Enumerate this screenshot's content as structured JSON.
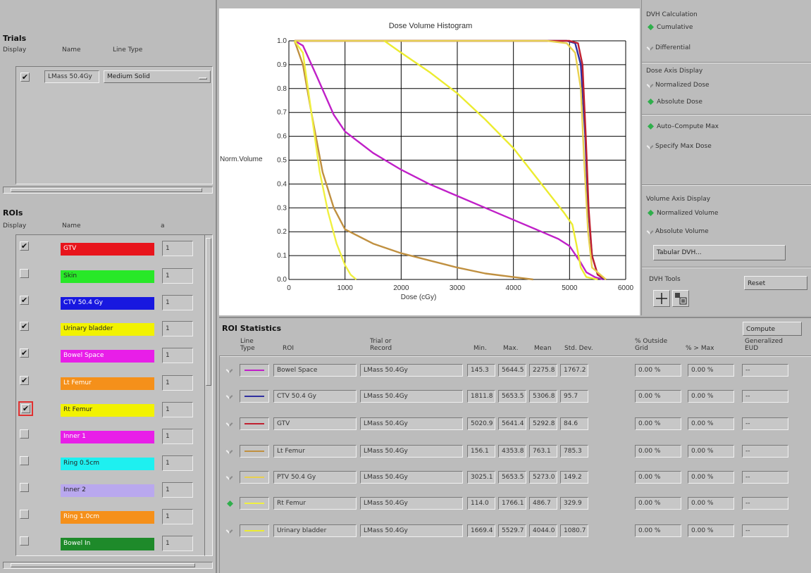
{
  "trials": {
    "title": "Trials",
    "headers": {
      "display": "Display",
      "name": "Name",
      "line_type": "Line Type"
    },
    "rows": [
      {
        "checked": true,
        "name": "LMass 50.4Gy",
        "line_type": "Medium Solid"
      }
    ]
  },
  "rois": {
    "title": "ROIs",
    "headers": {
      "display": "Display",
      "name": "Name",
      "a": "a"
    },
    "rows": [
      {
        "checked": true,
        "name": "GTV",
        "color": "#e8141c",
        "a": "1"
      },
      {
        "checked": false,
        "name": "Skin",
        "color": "#28e828",
        "a": "1"
      },
      {
        "checked": true,
        "name": "CTV 50.4 Gy",
        "color": "#1818e0",
        "a": "1"
      },
      {
        "checked": true,
        "name": "Urinary bladder",
        "color": "#f2f200",
        "a": "1"
      },
      {
        "checked": true,
        "name": "Bowel Space",
        "color": "#e81ee8",
        "a": "1"
      },
      {
        "checked": true,
        "name": "Lt Femur",
        "color": "#f5901a",
        "a": "1"
      },
      {
        "checked": true,
        "name": "Rt Femur",
        "color": "#f2f200",
        "a": "1"
      },
      {
        "checked": false,
        "name": "Inner 1",
        "color": "#e81ee8",
        "a": "1"
      },
      {
        "checked": false,
        "name": "Ring 0.5cm",
        "color": "#1ef0f0",
        "a": "1"
      },
      {
        "checked": false,
        "name": "Inner 2",
        "color": "#b9a8ee",
        "a": "1"
      },
      {
        "checked": false,
        "name": "Ring 1.0cm",
        "color": "#f5901a",
        "a": "1"
      },
      {
        "checked": false,
        "name": "Bowel In",
        "color": "#1e8a2a",
        "a": "1"
      }
    ]
  },
  "chart_data": {
    "type": "line",
    "title": "Dose Volume Histogram",
    "xlabel": "Dose (cGy)",
    "ylabel": "Norm.Volume",
    "xlim": [
      0,
      6000
    ],
    "ylim": [
      0,
      1.0
    ],
    "xticks": [
      "0",
      "1000",
      "2000",
      "3000",
      "4000",
      "5000",
      "6000"
    ],
    "yticks": [
      "0.0",
      "0.1",
      "0.2",
      "0.3",
      "0.4",
      "0.5",
      "0.6",
      "0.7",
      "0.8",
      "0.9",
      "1.0"
    ],
    "grid": true,
    "series": [
      {
        "name": "Bowel Space",
        "color": "#c020c8",
        "points": [
          [
            100,
            1.0
          ],
          [
            250,
            0.98
          ],
          [
            500,
            0.85
          ],
          [
            800,
            0.69
          ],
          [
            1000,
            0.62
          ],
          [
            1500,
            0.53
          ],
          [
            2000,
            0.46
          ],
          [
            2500,
            0.4
          ],
          [
            3000,
            0.35
          ],
          [
            3500,
            0.3
          ],
          [
            4000,
            0.25
          ],
          [
            4500,
            0.2
          ],
          [
            4800,
            0.17
          ],
          [
            5000,
            0.14
          ],
          [
            5200,
            0.07
          ],
          [
            5300,
            0.03
          ],
          [
            5450,
            0.01
          ],
          [
            5600,
            0
          ]
        ]
      },
      {
        "name": "CTV 50.4 Gy",
        "color": "#3030a0",
        "points": [
          [
            100,
            1.0
          ],
          [
            4950,
            1.0
          ],
          [
            5100,
            0.99
          ],
          [
            5200,
            0.9
          ],
          [
            5280,
            0.6
          ],
          [
            5330,
            0.3
          ],
          [
            5400,
            0.1
          ],
          [
            5500,
            0.02
          ],
          [
            5620,
            0
          ]
        ]
      },
      {
        "name": "GTV",
        "color": "#c02030",
        "points": [
          [
            100,
            1.0
          ],
          [
            5000,
            1.0
          ],
          [
            5150,
            0.99
          ],
          [
            5230,
            0.9
          ],
          [
            5290,
            0.6
          ],
          [
            5340,
            0.3
          ],
          [
            5400,
            0.1
          ],
          [
            5500,
            0.02
          ],
          [
            5650,
            0
          ]
        ]
      },
      {
        "name": "Lt Femur",
        "color": "#c09040",
        "points": [
          [
            100,
            1.0
          ],
          [
            250,
            0.9
          ],
          [
            400,
            0.7
          ],
          [
            600,
            0.45
          ],
          [
            800,
            0.3
          ],
          [
            1000,
            0.21
          ],
          [
            1500,
            0.15
          ],
          [
            2000,
            0.11
          ],
          [
            2500,
            0.08
          ],
          [
            3000,
            0.05
          ],
          [
            3500,
            0.025
          ],
          [
            4000,
            0.01
          ],
          [
            4350,
            0
          ]
        ]
      },
      {
        "name": "PTV 50.4 Gy",
        "color": "#e8d050",
        "points": [
          [
            100,
            1.0
          ],
          [
            4600,
            1.0
          ],
          [
            4950,
            0.99
          ],
          [
            5100,
            0.95
          ],
          [
            5200,
            0.8
          ],
          [
            5260,
            0.5
          ],
          [
            5330,
            0.2
          ],
          [
            5400,
            0.05
          ],
          [
            5650,
            0
          ]
        ]
      },
      {
        "name": "Rt Femur",
        "color": "#f0f040",
        "points": [
          [
            100,
            1.0
          ],
          [
            250,
            0.95
          ],
          [
            400,
            0.7
          ],
          [
            550,
            0.45
          ],
          [
            700,
            0.28
          ],
          [
            850,
            0.15
          ],
          [
            1000,
            0.06
          ],
          [
            1100,
            0.02
          ],
          [
            1200,
            0
          ]
        ]
      },
      {
        "name": "Urinary bladder",
        "color": "#ecec30",
        "points": [
          [
            1700,
            1.0
          ],
          [
            2000,
            0.95
          ],
          [
            2500,
            0.87
          ],
          [
            3000,
            0.78
          ],
          [
            3500,
            0.67
          ],
          [
            4000,
            0.55
          ],
          [
            4500,
            0.4
          ],
          [
            4900,
            0.28
          ],
          [
            5050,
            0.23
          ],
          [
            5120,
            0.15
          ],
          [
            5200,
            0.05
          ],
          [
            5300,
            0.01
          ],
          [
            5500,
            0
          ]
        ]
      }
    ]
  },
  "dvh_calc": {
    "title": "DVH Calculation",
    "options": [
      {
        "label": "Cumulative",
        "on": true
      },
      {
        "label": "Differential",
        "on": false
      }
    ]
  },
  "dose_axis": {
    "title": "Dose Axis Display",
    "options": [
      {
        "label": "Normalized Dose",
        "on": false
      },
      {
        "label": "Absolute Dose",
        "on": true
      }
    ]
  },
  "max_dose": {
    "options": [
      {
        "label": "Auto–Compute Max",
        "on": true
      },
      {
        "label": "Specify Max Dose",
        "on": false
      }
    ]
  },
  "volume_axis": {
    "title": "Volume Axis Display",
    "options": [
      {
        "label": "Normalized Volume",
        "on": true
      },
      {
        "label": "Absolute Volume",
        "on": false
      }
    ],
    "tabular_btn": "Tabular DVH..."
  },
  "dvh_tools": {
    "title": "DVH Tools",
    "reset_btn": "Reset"
  },
  "stats": {
    "title": "ROI Statistics",
    "compute_btn": "Compute",
    "headers": {
      "line_type": "Line\nType",
      "roi": "ROI",
      "trial": "Trial or\nRecord",
      "min": "Min.",
      "max": "Max.",
      "mean": "Mean",
      "std": "Std. Dev.",
      "outside": "% Outside\nGrid",
      "gtmax": "% > Max",
      "eud": "Generalized\nEUD"
    },
    "rows": [
      {
        "color": "#c020c8",
        "roi": "Bowel Space",
        "trial": "LMass 50.4Gy",
        "min": "145.3",
        "max": "5644.5",
        "mean": "2275.8",
        "std": "1767.2",
        "outside": "0.00 %",
        "gtmax": "0.00 %",
        "eud": "--",
        "selected": false
      },
      {
        "color": "#3030a0",
        "roi": "CTV 50.4 Gy",
        "trial": "LMass 50.4Gy",
        "min": "1811.8",
        "max": "5653.5",
        "mean": "5306.8",
        "std": "95.7",
        "outside": "0.00 %",
        "gtmax": "0.00 %",
        "eud": "--",
        "selected": false
      },
      {
        "color": "#c02030",
        "roi": "GTV",
        "trial": "LMass 50.4Gy",
        "min": "5020.9",
        "max": "5641.4",
        "mean": "5292.8",
        "std": "84.6",
        "outside": "0.00 %",
        "gtmax": "0.00 %",
        "eud": "--",
        "selected": false
      },
      {
        "color": "#c09040",
        "roi": "Lt Femur",
        "trial": "LMass 50.4Gy",
        "min": "156.1",
        "max": "4353.8",
        "mean": "763.1",
        "std": "785.3",
        "outside": "0.00 %",
        "gtmax": "0.00 %",
        "eud": "--",
        "selected": false
      },
      {
        "color": "#e8d050",
        "roi": "PTV 50.4 Gy",
        "trial": "LMass 50.4Gy",
        "min": "3025.1",
        "max": "5653.5",
        "mean": "5273.0",
        "std": "149.2",
        "outside": "0.00 %",
        "gtmax": "0.00 %",
        "eud": "--",
        "selected": false
      },
      {
        "color": "#f0f040",
        "roi": "Rt Femur",
        "trial": "LMass 50.4Gy",
        "min": "114.0",
        "max": "1766.1",
        "mean": "486.7",
        "std": "329.9",
        "outside": "0.00 %",
        "gtmax": "0.00 %",
        "eud": "--",
        "selected": true
      },
      {
        "color": "#ecec30",
        "roi": "Urinary bladder",
        "trial": "LMass 50.4Gy",
        "min": "1669.4",
        "max": "5529.7",
        "mean": "4044.0",
        "std": "1080.7",
        "outside": "0.00 %",
        "gtmax": "0.00 %",
        "eud": "--",
        "selected": false
      }
    ]
  }
}
